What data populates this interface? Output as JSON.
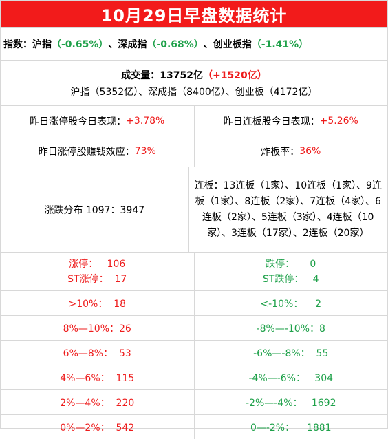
{
  "title": "10月29日早盘数据统计",
  "indices": {
    "label": "指数：",
    "sh_name": "沪指",
    "sh_value": "（-0.65%）",
    "sep1": "、",
    "sz_name": "深成指",
    "sz_value": "（-0.68%）",
    "sep2": "、",
    "cy_name": "创业板指",
    "cy_value": "（-1.41%）"
  },
  "volume": {
    "label": "成交量：13752亿",
    "change": "（+1520亿）",
    "breakdown": "沪指（5352亿）、深成指（8400亿）、创业板（4172亿）"
  },
  "perf": {
    "limitup_label": "昨日涨停股今日表现：",
    "limitup_value": "+3.78%",
    "consec_label": "昨日连板股今日表现：",
    "consec_value": "+5.26%"
  },
  "effect": {
    "profit_label": "昨日涨停股赚钱效应：",
    "profit_value": "73%",
    "break_label": "炸板率：",
    "break_value": "36%"
  },
  "distribution": {
    "label": "涨跌分布 1097：3947",
    "boards": "连板：13连板（1家）、10连板（1家）、9连板（1家）、8连板（2家）、7连板（4家）、6连板（2家）、5连板（3家）、4连板（10家）、3连板（17家）、2连板（20家）"
  },
  "limits": {
    "up": "涨停：   106",
    "st_up": "ST涨停：  17",
    "down": "跌停：     0",
    "st_down": "ST跌停：   4"
  },
  "ranges": [
    {
      "up": ">10%：  18",
      "down": "<-10%：    2"
    },
    {
      "up": "8%—10%：26",
      "down": "-8%—-10%：8"
    },
    {
      "up": "6%—8%：  53",
      "down": "-6%—-8%：  55"
    },
    {
      "up": "4%—6%：  115",
      "down": "-4%—-6%：   304"
    },
    {
      "up": "2%—4%：  220",
      "down": "-2%—-4%：   1692"
    },
    {
      "up": "0%—2%：  542",
      "down": "0—-2%：    1881"
    }
  ],
  "colors": {
    "up": "#ee1c1c",
    "down": "#1fa14a",
    "title_bg": "#f21b1b"
  }
}
